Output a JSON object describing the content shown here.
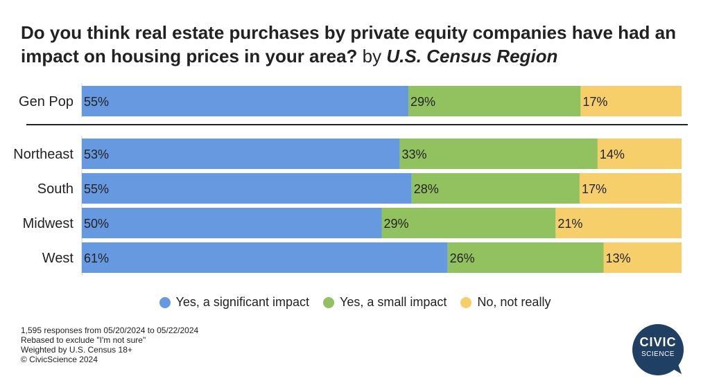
{
  "header": {
    "title_main": "Do you think real estate purchases by private equity companies have had an impact on housing prices in your area?",
    "title_by": "by",
    "title_segment": "U.S. Census Region"
  },
  "chart_data": {
    "type": "bar",
    "orientation": "horizontal",
    "stacked": true,
    "categories": [
      "Gen Pop",
      "Northeast",
      "South",
      "Midwest",
      "West"
    ],
    "separator_after_index": 0,
    "series": [
      {
        "name": "Yes, a significant impact",
        "color": "#6699e0",
        "values": [
          55,
          53,
          55,
          50,
          61
        ],
        "labels": [
          "55%",
          "53%",
          "55%",
          "50%",
          "61%"
        ]
      },
      {
        "name": "Yes, a small impact",
        "color": "#92c25f",
        "values": [
          29,
          33,
          28,
          29,
          26
        ],
        "labels": [
          "29%",
          "33%",
          "28%",
          "29%",
          "26%"
        ]
      },
      {
        "name": "No, not really",
        "color": "#f6cf6b",
        "values": [
          17,
          14,
          17,
          21,
          13
        ],
        "labels": [
          "17%",
          "14%",
          "17%",
          "21%",
          "13%"
        ]
      }
    ],
    "legend_position": "bottom-center"
  },
  "legend": {
    "items": [
      {
        "label": "Yes, a significant impact",
        "color": "#6699e0"
      },
      {
        "label": "Yes, a small impact",
        "color": "#92c25f"
      },
      {
        "label": "No, not really",
        "color": "#f6cf6b"
      }
    ]
  },
  "notes": {
    "line1": "1,595 responses from 05/20/2024 to 05/22/2024",
    "line2": "Rebased to exclude \"I'm not sure\"",
    "line3": "Weighted by U.S. Census 18+",
    "line4": "© CivicScience 2024"
  },
  "logo": {
    "line1": "CIVIC",
    "line2": "SCIENCE",
    "color": "#1f3f63"
  }
}
